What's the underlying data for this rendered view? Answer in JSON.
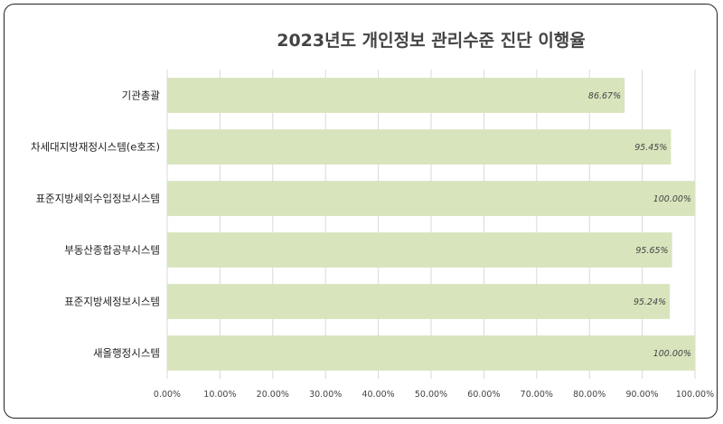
{
  "chart_data": {
    "type": "bar",
    "orientation": "horizontal",
    "title": "2023년도 개인정보 관리수준 진단 이행율",
    "categories": [
      "기관총괄",
      "차세대지방재정시스템(e호조)",
      "표준지방세외수입정보시스템",
      "부동산종합공부시스템",
      "표준지방세정보시스템",
      "새올행정시스템"
    ],
    "values": [
      86.67,
      95.45,
      100.0,
      95.65,
      95.24,
      100.0
    ],
    "data_labels": [
      "86.67%",
      "95.45%",
      "100.00%",
      "95.65%",
      "95.24%",
      "100.00%"
    ],
    "xlim": [
      0,
      100
    ],
    "xticks": [
      0,
      10,
      20,
      30,
      40,
      50,
      60,
      70,
      80,
      90,
      100
    ],
    "xtick_labels": [
      "0.00%",
      "10.00%",
      "20.00%",
      "30.00%",
      "40.00%",
      "50.00%",
      "60.00%",
      "70.00%",
      "80.00%",
      "90.00%",
      "100.00%"
    ],
    "xlabel": "",
    "ylabel": "",
    "grid": "vertical",
    "legend": "none",
    "bar_color": "#d8e4bc",
    "grid_color": "#d9d9d9"
  }
}
